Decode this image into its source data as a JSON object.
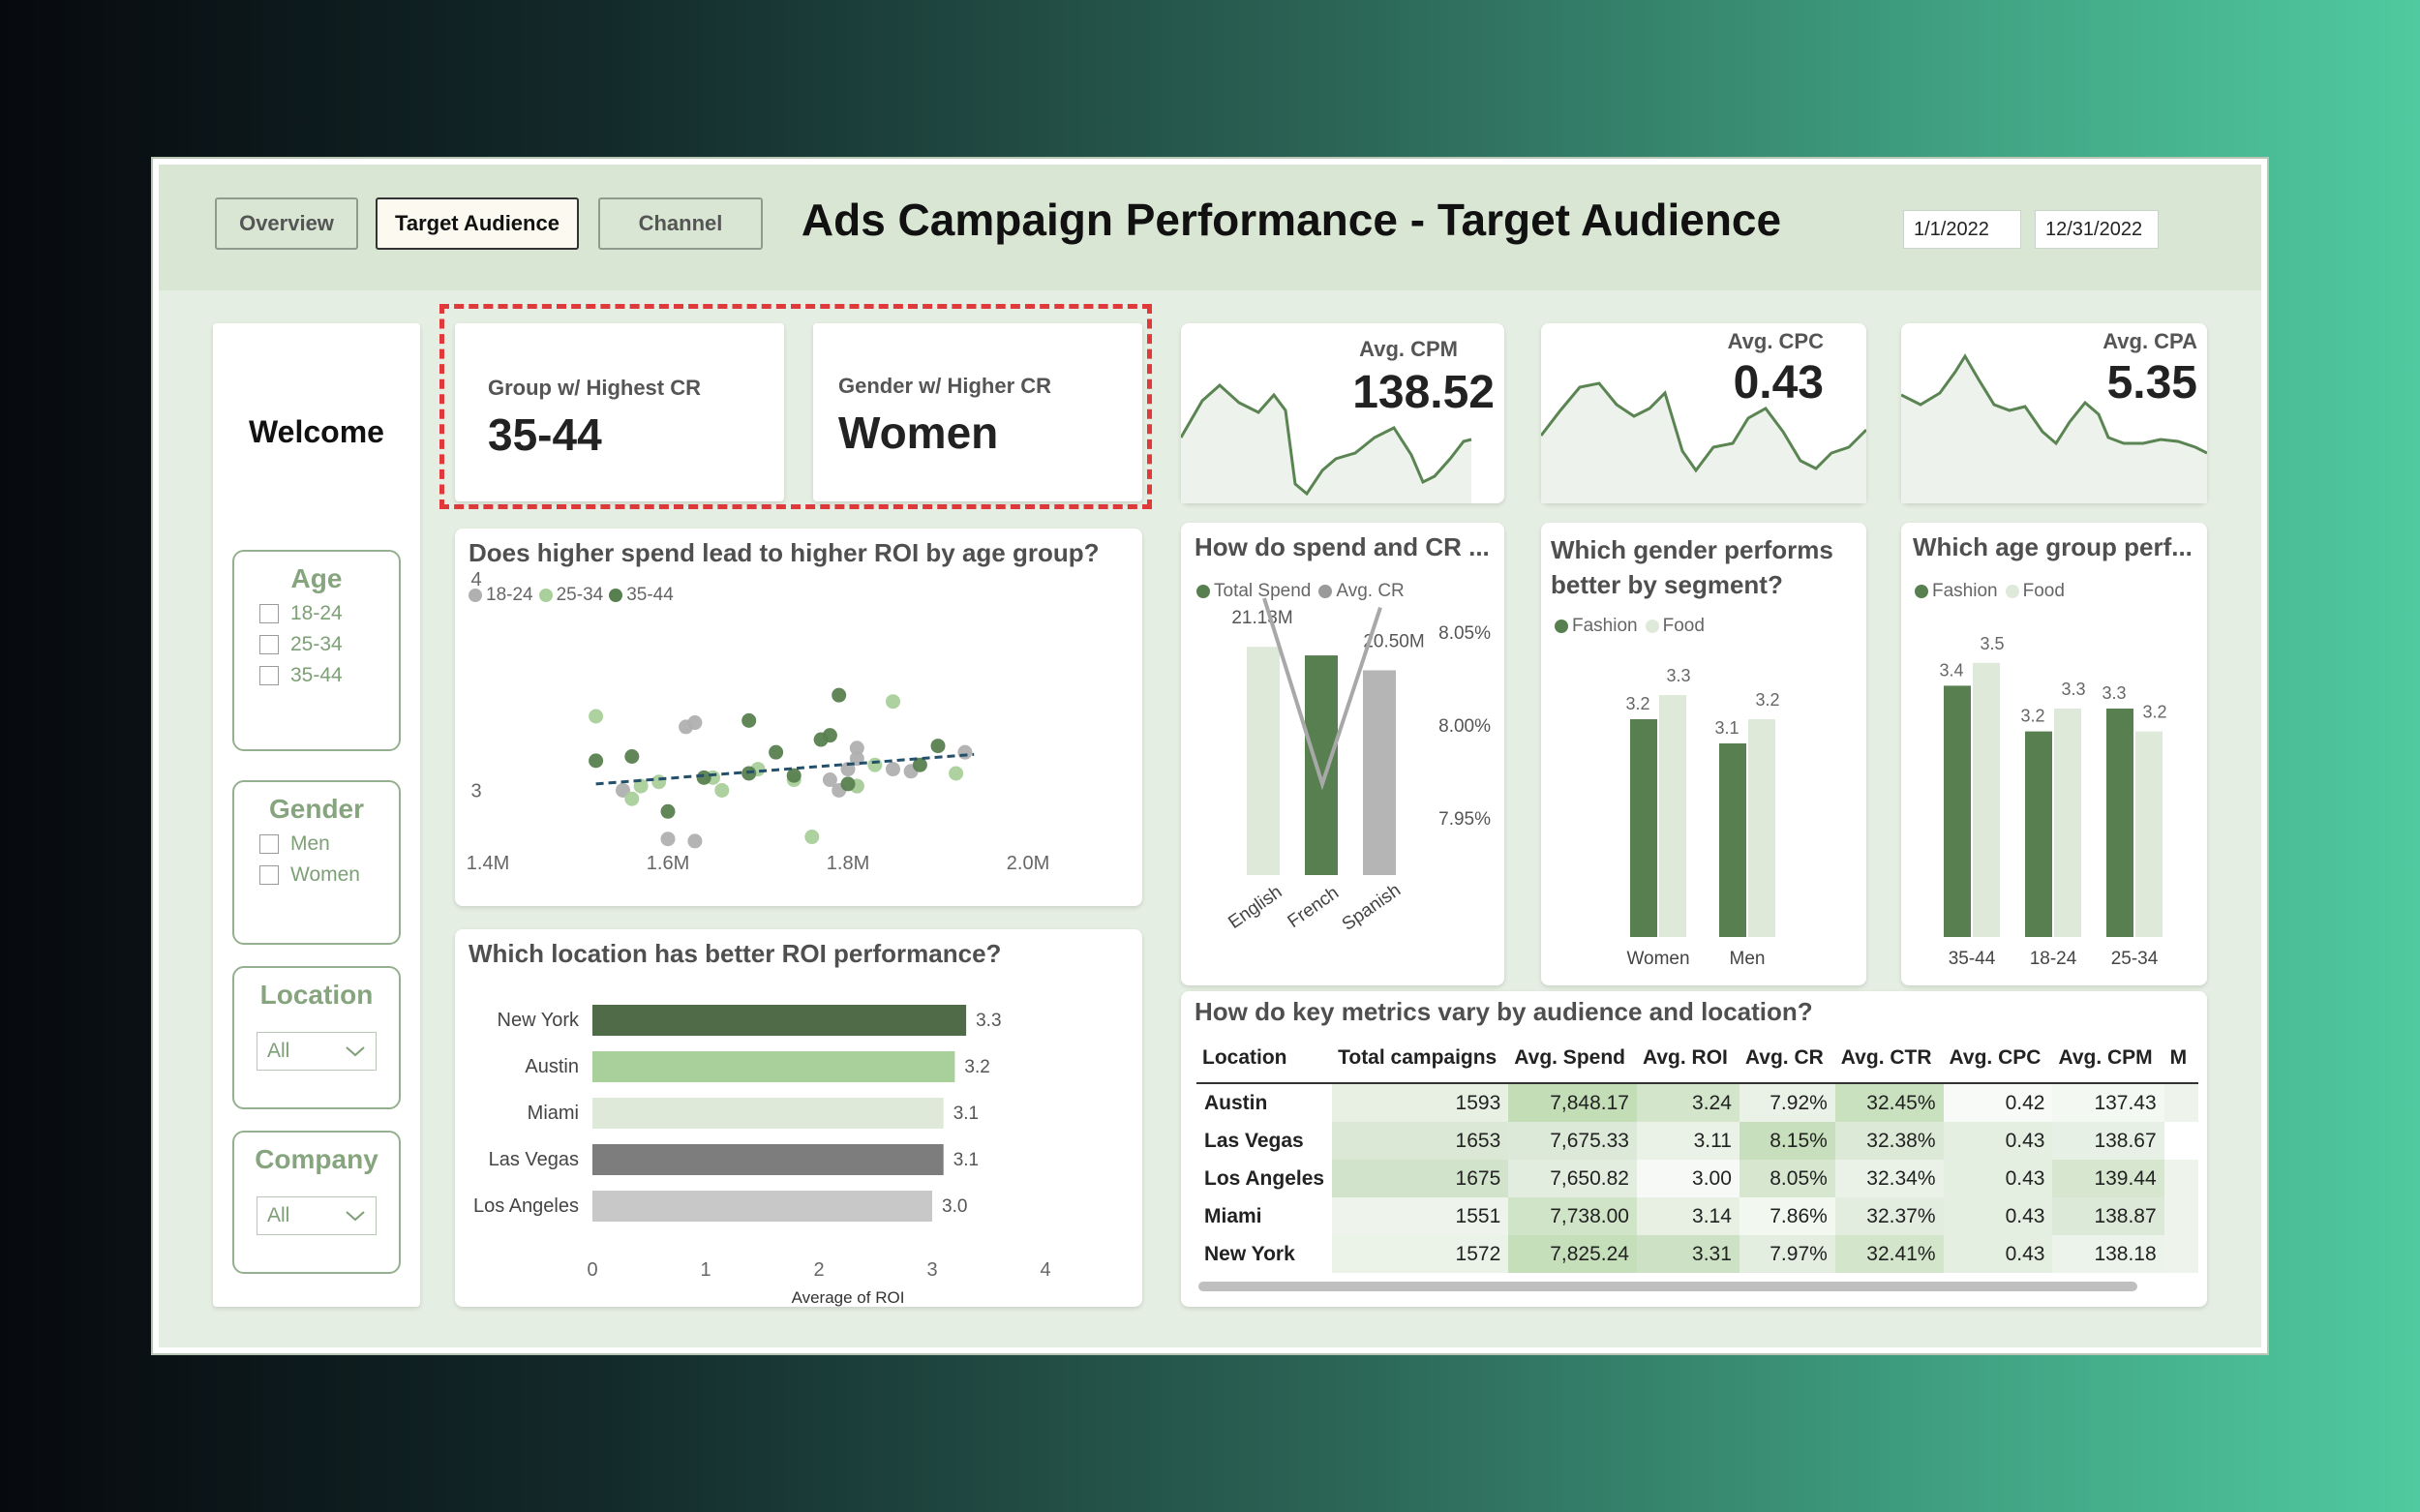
{
  "nav": {
    "overview": "Overview",
    "target": "Target Audience",
    "channel": "Channel"
  },
  "title": "Ads Campaign Performance - Target Audience",
  "dates": {
    "start": "1/1/2022",
    "end": "12/31/2022"
  },
  "welcome": "Welcome",
  "filters": {
    "age": {
      "title": "Age",
      "options": [
        "18-24",
        "25-34",
        "35-44"
      ]
    },
    "gender": {
      "title": "Gender",
      "options": [
        "Men",
        "Women"
      ]
    },
    "location": {
      "title": "Location",
      "value": "All"
    },
    "company": {
      "title": "Company",
      "value": "All"
    }
  },
  "highlight": {
    "group": {
      "label": "Group w/ Highest CR",
      "value": "35-44"
    },
    "gender": {
      "label": "Gender w/ Higher CR",
      "value": "Women"
    }
  },
  "kpis": [
    {
      "label": "Avg. CPM",
      "value": "138.52"
    },
    {
      "label": "Avg. CPC",
      "value": "0.43"
    },
    {
      "label": "Avg. CPA",
      "value": "5.35"
    }
  ],
  "colors": {
    "dark": "#587f4f",
    "mid": "#a9d09b",
    "light": "#dfe9da",
    "grey_dark": "#7d7d7d",
    "grey_light": "#c8c8c8",
    "darkest": "#4f6b48",
    "trend": "#24506b"
  },
  "chart_data": [
    {
      "type": "scatter",
      "title": "Does higher spend lead to higher ROI by age group?",
      "legend": [
        "18-24",
        "25-34",
        "35-44"
      ],
      "x_ticks": [
        "1.4M",
        "1.6M",
        "1.8M",
        "2.0M"
      ],
      "y_ticks": [
        "4",
        "3"
      ],
      "xlim": [
        1400000,
        2000000
      ],
      "ylim": [
        2.7,
        4
      ],
      "series": [
        {
          "name": "18-24",
          "points": [
            [
              1620000,
              3.3
            ],
            [
              1630000,
              3.32
            ],
            [
              1600000,
              2.77
            ],
            [
              1630000,
              2.76
            ],
            [
              1780000,
              3.05
            ],
            [
              1790000,
              3.0
            ],
            [
              1800000,
              3.1
            ],
            [
              1810000,
              3.15
            ],
            [
              1810000,
              3.02
            ],
            [
              1850000,
              3.1
            ],
            [
              1870000,
              3.09
            ],
            [
              1930000,
              3.18
            ],
            [
              1810000,
              3.2
            ],
            [
              1550000,
              3.0
            ]
          ]
        },
        {
          "name": "25-34",
          "points": [
            [
              1520000,
              3.35
            ],
            [
              1570000,
              3.02
            ],
            [
              1590000,
              3.04
            ],
            [
              1560000,
              2.96
            ],
            [
              1650000,
              3.06
            ],
            [
              1700000,
              3.1
            ],
            [
              1740000,
              3.05
            ],
            [
              1760000,
              2.78
            ],
            [
              1810000,
              3.02
            ],
            [
              1830000,
              3.12
            ],
            [
              1850000,
              3.42
            ],
            [
              1920000,
              3.08
            ],
            [
              1660000,
              3.0
            ]
          ]
        },
        {
          "name": "35-44",
          "points": [
            [
              1520000,
              3.14
            ],
            [
              1560000,
              3.16
            ],
            [
              1640000,
              3.06
            ],
            [
              1690000,
              3.08
            ],
            [
              1690000,
              3.33
            ],
            [
              1720000,
              3.18
            ],
            [
              1740000,
              3.07
            ],
            [
              1770000,
              3.24
            ],
            [
              1780000,
              3.26
            ],
            [
              1790000,
              3.45
            ],
            [
              1800000,
              3.03
            ],
            [
              1880000,
              3.12
            ],
            [
              1900000,
              3.21
            ],
            [
              1600000,
              2.9
            ]
          ]
        }
      ],
      "trend": [
        [
          1520000,
          3.03
        ],
        [
          1940000,
          3.17
        ]
      ]
    },
    {
      "type": "bar",
      "title": "Which location has better ROI performance?",
      "categories": [
        "New York",
        "Austin",
        "Miami",
        "Las Vegas",
        "Los Angeles"
      ],
      "values": [
        3.3,
        3.2,
        3.1,
        3.1,
        3.0
      ],
      "xlabel": "Average of ROI",
      "x_ticks": [
        "0",
        "1",
        "2",
        "3",
        "4"
      ],
      "xlim": [
        0,
        4
      ]
    },
    {
      "type": "bar",
      "title": "How do spend and CR ...",
      "legend": [
        "Total Spend",
        "Avg. CR"
      ],
      "categories": [
        "English",
        "French",
        "Spanish"
      ],
      "series": [
        {
          "name": "Total Spend",
          "values": [
            21130000,
            20900000,
            20500000
          ],
          "labels": [
            "21.13M",
            "",
            "20.50M"
          ]
        },
        {
          "name": "Avg. CR",
          "values": [
            8.025,
            7.925,
            8.02
          ]
        }
      ],
      "y2_ticks": [
        "8.05%",
        "8.00%",
        "7.95%"
      ]
    },
    {
      "type": "bar",
      "title": "Which gender performs better by segment?",
      "legend": [
        "Fashion",
        "Food"
      ],
      "categories": [
        "Women",
        "Men"
      ],
      "series": [
        {
          "name": "Fashion",
          "values": [
            3.2,
            3.1
          ]
        },
        {
          "name": "Food",
          "values": [
            3.3,
            3.2
          ]
        }
      ]
    },
    {
      "type": "bar",
      "title": "Which age group perf...",
      "legend": [
        "Fashion",
        "Food"
      ],
      "categories": [
        "35-44",
        "18-24",
        "25-34"
      ],
      "series": [
        {
          "name": "Fashion",
          "values": [
            3.4,
            3.2,
            3.3
          ]
        },
        {
          "name": "Food",
          "values": [
            3.5,
            3.3,
            3.2
          ]
        }
      ]
    },
    {
      "type": "table",
      "title": "How do key metrics vary by audience and location?",
      "columns": [
        "Location",
        "Total campaigns",
        "Avg. Spend",
        "Avg. ROI",
        "Avg. CR",
        "Avg. CTR",
        "Avg. CPC",
        "Avg. CPM",
        "M"
      ],
      "rows": [
        [
          "Austin",
          "1593",
          "7,848.17",
          "3.24",
          "7.92%",
          "32.45%",
          "0.42",
          "137.43"
        ],
        [
          "Las Vegas",
          "1653",
          "7,675.33",
          "3.11",
          "8.15%",
          "32.38%",
          "0.43",
          "138.67"
        ],
        [
          "Los Angeles",
          "1675",
          "7,650.82",
          "3.00",
          "8.05%",
          "32.34%",
          "0.43",
          "139.44"
        ],
        [
          "Miami",
          "1551",
          "7,738.00",
          "3.14",
          "7.86%",
          "32.37%",
          "0.43",
          "138.87"
        ],
        [
          "New York",
          "1572",
          "7,825.24",
          "3.31",
          "7.97%",
          "32.41%",
          "0.43",
          "138.18"
        ]
      ]
    }
  ]
}
